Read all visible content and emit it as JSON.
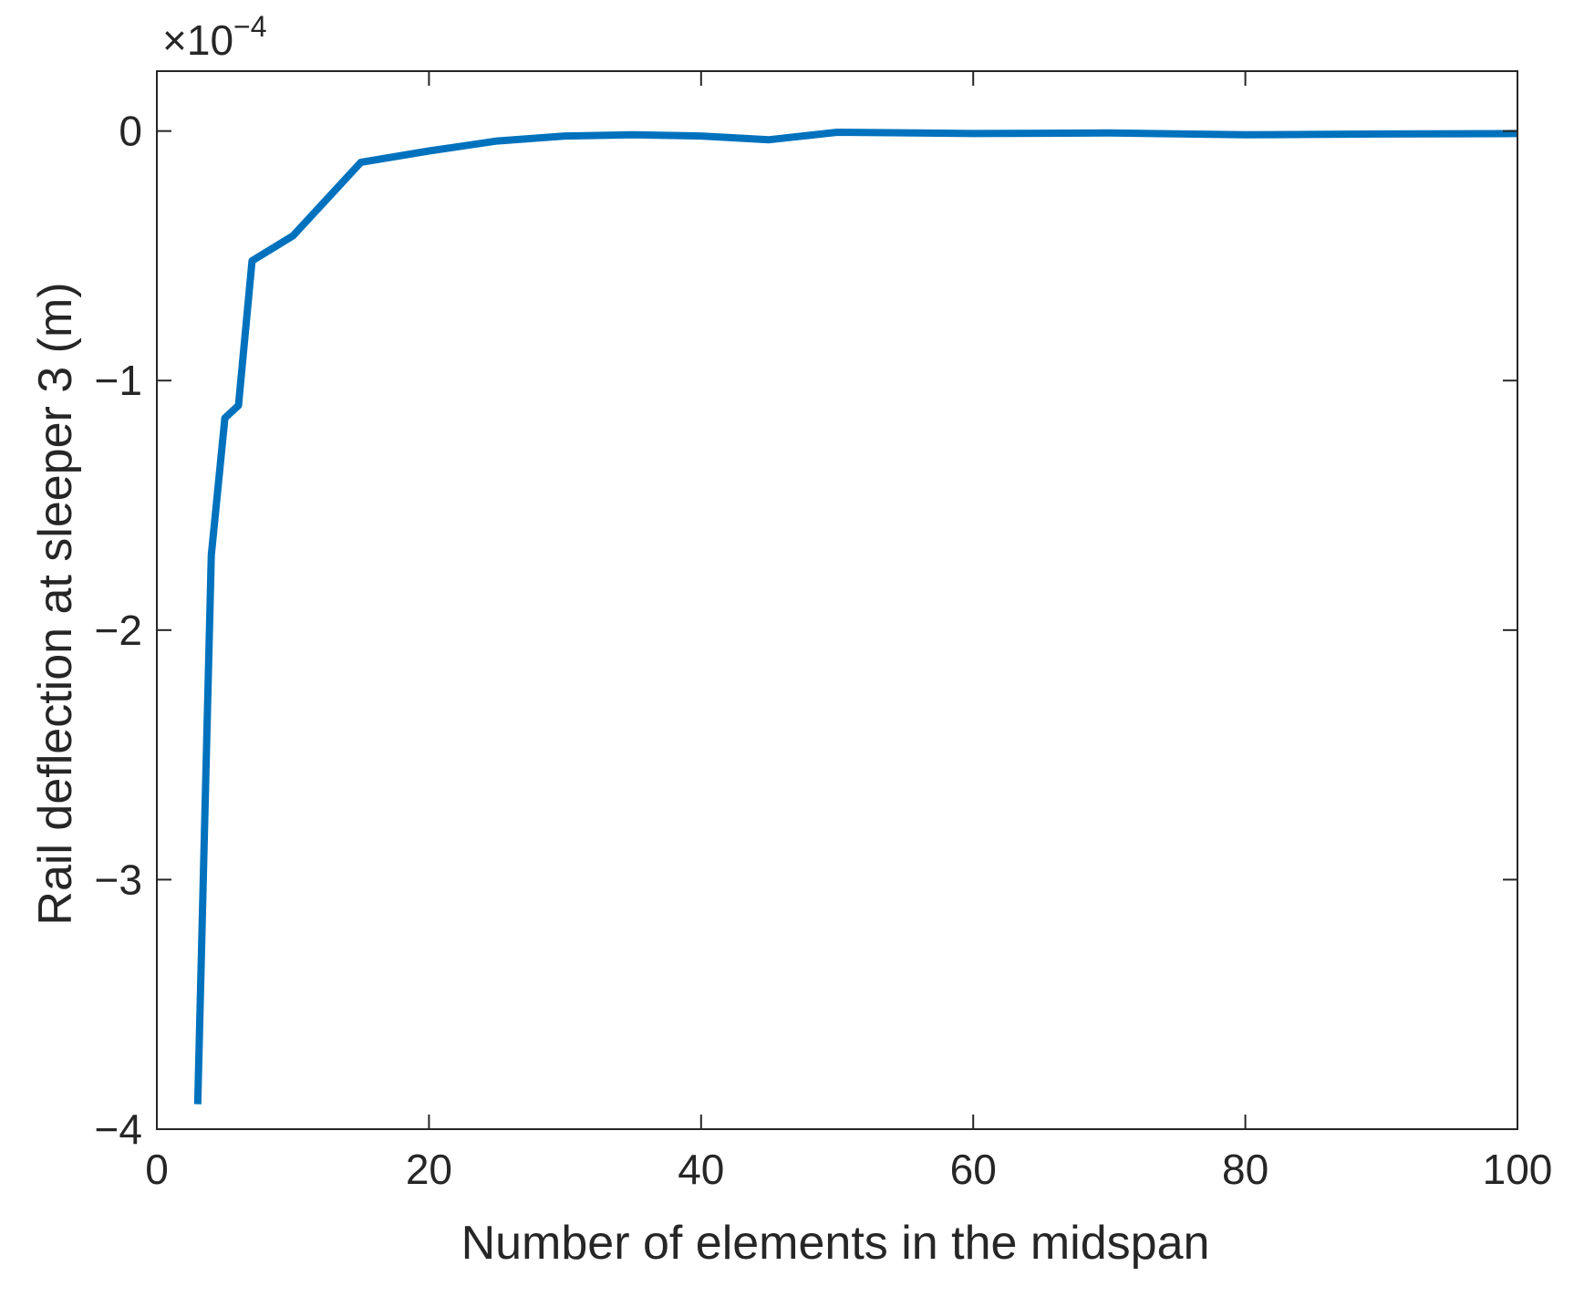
{
  "chart_data": {
    "type": "line",
    "xlabel": "Number of elements in the midspan",
    "ylabel": "Rail deflection at sleeper 3 (m)",
    "y_exponent_base": "10",
    "y_exponent_power": "−4",
    "y_multiplier_prefix": "×",
    "xlim": [
      0,
      100
    ],
    "ylim": [
      -4,
      0.24
    ],
    "x_ticks": [
      0,
      20,
      40,
      60,
      80,
      100
    ],
    "y_ticks": [
      0,
      -1,
      -2,
      -3,
      -4
    ],
    "x_tick_labels": [
      "0",
      "20",
      "40",
      "60",
      "80",
      "100"
    ],
    "y_tick_labels": [
      "0",
      "−1",
      "−2",
      "−3",
      "−4"
    ],
    "grid": false,
    "box": true,
    "series": [
      {
        "color": "#0072BD",
        "x": [
          3,
          4,
          5,
          6,
          7,
          10,
          15,
          20,
          25,
          30,
          35,
          40,
          45,
          50,
          60,
          70,
          80,
          90,
          100
        ],
        "y": [
          -3.9,
          -1.7,
          -1.15,
          -1.1,
          -0.52,
          -0.42,
          -0.125,
          -0.08,
          -0.04,
          -0.02,
          -0.015,
          -0.02,
          -0.035,
          -0.005,
          -0.01,
          -0.008,
          -0.015,
          -0.012,
          -0.01
        ]
      }
    ]
  }
}
